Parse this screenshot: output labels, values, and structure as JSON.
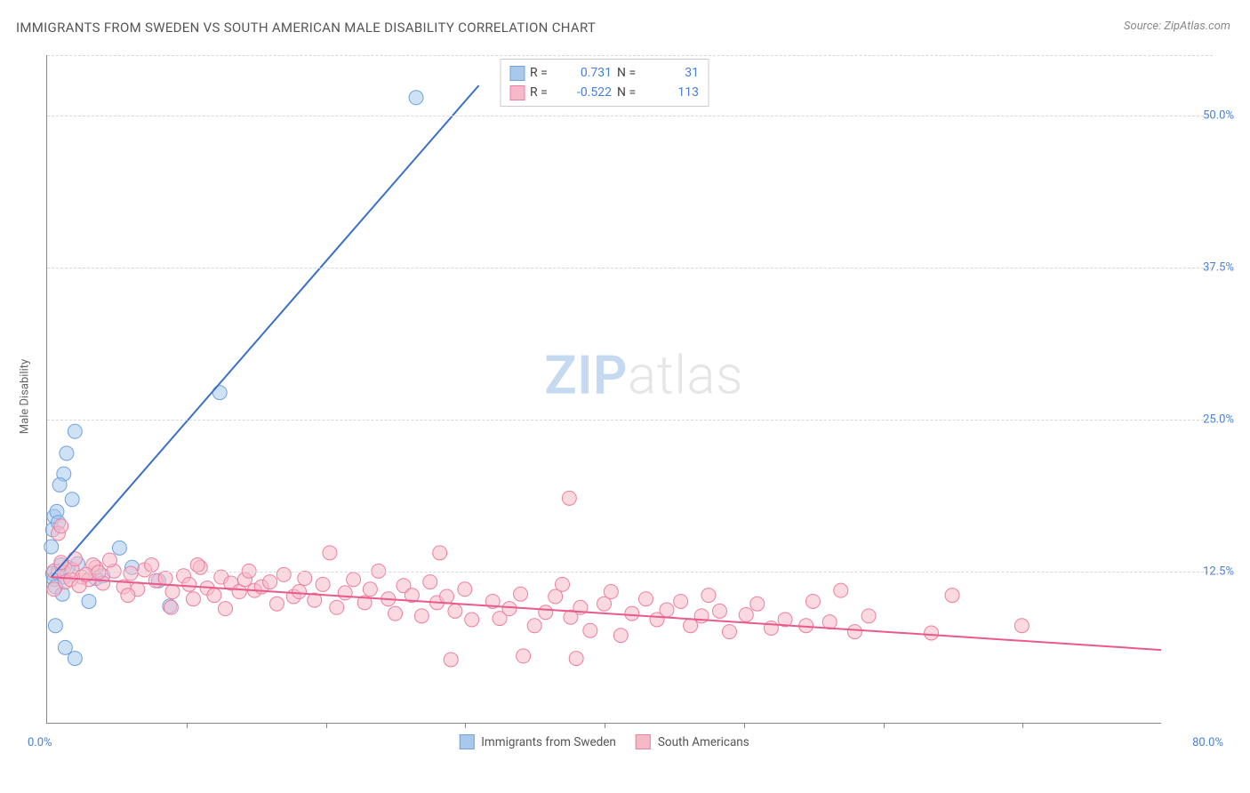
{
  "title": "IMMIGRANTS FROM SWEDEN VS SOUTH AMERICAN MALE DISABILITY CORRELATION CHART",
  "source": "Source: ZipAtlas.com",
  "watermark_bold": "ZIP",
  "watermark_light": "atlas",
  "y_axis_label": "Male Disability",
  "chart": {
    "type": "scatter",
    "xlim": [
      0,
      80
    ],
    "ylim": [
      0,
      55
    ],
    "x_start_label": "0.0%",
    "x_end_label": "80.0%",
    "y_ticks": [
      12.5,
      25.0,
      37.5,
      50.0
    ],
    "y_tick_labels": [
      "12.5%",
      "25.0%",
      "37.5%",
      "50.0%"
    ],
    "x_tick_positions": [
      10,
      20,
      30,
      40,
      50,
      60,
      70
    ],
    "background_color": "#ffffff",
    "grid_color": "#d8d8d8",
    "axis_color": "#888888",
    "label_color": "#4a7fd6",
    "series": [
      {
        "name": "Immigrants from Sweden",
        "color_fill": "#a8c8ec",
        "color_stroke": "#6fa2dd",
        "marker_radius": 8,
        "fill_opacity": 0.55,
        "R": 0.731,
        "N": 31,
        "trendline": {
          "x1": 0.3,
          "y1": 12.0,
          "x2": 31,
          "y2": 52.5,
          "color": "#3b71c5",
          "width": 2
        },
        "points": [
          [
            0.4,
            12.3
          ],
          [
            0.5,
            11.8
          ],
          [
            0.8,
            12.5
          ],
          [
            1.0,
            13.0
          ],
          [
            1.2,
            12.0
          ],
          [
            0.6,
            11.2
          ],
          [
            0.3,
            14.5
          ],
          [
            0.5,
            17.0
          ],
          [
            0.7,
            17.4
          ],
          [
            1.2,
            20.5
          ],
          [
            1.4,
            22.2
          ],
          [
            2.0,
            24.0
          ],
          [
            3.0,
            10.0
          ],
          [
            0.4,
            15.9
          ],
          [
            0.8,
            16.5
          ],
          [
            1.5,
            12.8
          ],
          [
            2.2,
            13.1
          ],
          [
            3.5,
            11.9
          ],
          [
            4.0,
            12.1
          ],
          [
            5.2,
            14.4
          ],
          [
            6.1,
            12.8
          ],
          [
            8.0,
            11.7
          ],
          [
            8.8,
            9.6
          ],
          [
            1.8,
            18.4
          ],
          [
            0.9,
            19.6
          ],
          [
            12.4,
            27.2
          ],
          [
            26.5,
            51.5
          ],
          [
            2.0,
            5.3
          ],
          [
            0.6,
            8.0
          ],
          [
            1.3,
            6.2
          ],
          [
            1.1,
            10.6
          ]
        ]
      },
      {
        "name": "South Americans",
        "color_fill": "#f6b9c8",
        "color_stroke": "#ed7f9f",
        "marker_radius": 8,
        "fill_opacity": 0.55,
        "R": -0.522,
        "N": 113,
        "trendline": {
          "x1": 0.3,
          "y1": 12.0,
          "x2": 80,
          "y2": 6.0,
          "color": "#e95a8a",
          "width": 2
        },
        "points": [
          [
            0.5,
            12.5
          ],
          [
            1.2,
            12.4
          ],
          [
            1.8,
            12.6
          ],
          [
            2.5,
            12.0
          ],
          [
            3.0,
            11.8
          ],
          [
            3.5,
            12.8
          ],
          [
            4.0,
            11.5
          ],
          [
            4.8,
            12.5
          ],
          [
            5.5,
            11.2
          ],
          [
            6.0,
            12.3
          ],
          [
            6.5,
            11.0
          ],
          [
            7.0,
            12.6
          ],
          [
            7.8,
            11.7
          ],
          [
            8.5,
            11.9
          ],
          [
            9.0,
            10.8
          ],
          [
            9.8,
            12.1
          ],
          [
            10.2,
            11.4
          ],
          [
            10.5,
            10.2
          ],
          [
            11.0,
            12.8
          ],
          [
            11.5,
            11.1
          ],
          [
            12.0,
            10.5
          ],
          [
            12.5,
            12.0
          ],
          [
            13.2,
            11.5
          ],
          [
            13.8,
            10.8
          ],
          [
            14.2,
            11.8
          ],
          [
            14.9,
            10.9
          ],
          [
            15.4,
            11.2
          ],
          [
            16.0,
            11.6
          ],
          [
            16.5,
            9.8
          ],
          [
            17.0,
            12.2
          ],
          [
            17.7,
            10.4
          ],
          [
            18.1,
            10.8
          ],
          [
            18.5,
            11.9
          ],
          [
            19.2,
            10.1
          ],
          [
            19.8,
            11.4
          ],
          [
            20.3,
            14.0
          ],
          [
            20.8,
            9.5
          ],
          [
            21.4,
            10.7
          ],
          [
            22.0,
            11.8
          ],
          [
            22.8,
            9.9
          ],
          [
            23.2,
            11.0
          ],
          [
            23.8,
            12.5
          ],
          [
            24.5,
            10.2
          ],
          [
            25.0,
            9.0
          ],
          [
            25.6,
            11.3
          ],
          [
            26.2,
            10.5
          ],
          [
            26.9,
            8.8
          ],
          [
            27.5,
            11.6
          ],
          [
            28.0,
            9.9
          ],
          [
            28.2,
            14.0
          ],
          [
            28.7,
            10.4
          ],
          [
            29.3,
            9.2
          ],
          [
            30.0,
            11.0
          ],
          [
            30.5,
            8.5
          ],
          [
            29.0,
            5.2
          ],
          [
            1.0,
            13.2
          ],
          [
            2.0,
            13.5
          ],
          [
            3.3,
            13.0
          ],
          [
            4.5,
            13.4
          ],
          [
            5.8,
            10.5
          ],
          [
            7.5,
            13.0
          ],
          [
            8.9,
            9.5
          ],
          [
            10.8,
            13.0
          ],
          [
            12.8,
            9.4
          ],
          [
            14.5,
            12.5
          ],
          [
            32.0,
            10.0
          ],
          [
            32.5,
            8.6
          ],
          [
            33.2,
            9.4
          ],
          [
            34.0,
            10.6
          ],
          [
            34.2,
            5.5
          ],
          [
            35.0,
            8.0
          ],
          [
            35.8,
            9.1
          ],
          [
            36.5,
            10.4
          ],
          [
            37.0,
            11.4
          ],
          [
            37.6,
            8.7
          ],
          [
            38.3,
            9.5
          ],
          [
            39.0,
            7.6
          ],
          [
            40.0,
            9.8
          ],
          [
            40.5,
            10.8
          ],
          [
            41.2,
            7.2
          ],
          [
            42.0,
            9.0
          ],
          [
            38.0,
            5.3
          ],
          [
            37.5,
            18.5
          ],
          [
            43.0,
            10.2
          ],
          [
            43.8,
            8.5
          ],
          [
            44.5,
            9.3
          ],
          [
            45.5,
            10.0
          ],
          [
            46.2,
            8.0
          ],
          [
            47.0,
            8.8
          ],
          [
            47.5,
            10.5
          ],
          [
            48.3,
            9.2
          ],
          [
            49.0,
            7.5
          ],
          [
            50.2,
            8.9
          ],
          [
            51.0,
            9.8
          ],
          [
            52.0,
            7.8
          ],
          [
            53.0,
            8.5
          ],
          [
            54.5,
            8.0
          ],
          [
            55.0,
            10.0
          ],
          [
            56.2,
            8.3
          ],
          [
            57.0,
            10.9
          ],
          [
            58.0,
            7.5
          ],
          [
            59.0,
            8.8
          ],
          [
            63.5,
            7.4
          ],
          [
            65.0,
            10.5
          ],
          [
            0.8,
            15.6
          ],
          [
            1.0,
            16.2
          ],
          [
            0.5,
            11.0
          ],
          [
            1.3,
            11.6
          ],
          [
            1.7,
            11.8
          ],
          [
            2.3,
            11.3
          ],
          [
            70.0,
            8.0
          ],
          [
            2.8,
            12.2
          ],
          [
            3.7,
            12.4
          ]
        ]
      }
    ]
  },
  "legend_bottom": [
    {
      "label": "Immigrants from Sweden",
      "fill": "#a8c8ec",
      "stroke": "#6fa2dd"
    },
    {
      "label": "South Americans",
      "fill": "#f6b9c8",
      "stroke": "#ed7f9f"
    }
  ]
}
